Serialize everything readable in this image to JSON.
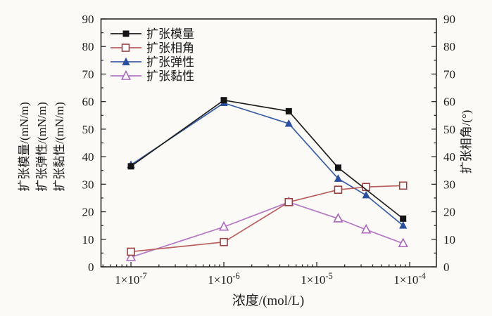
{
  "figure": {
    "background": "#fbfaf7",
    "frame_color": "#2a2a2a",
    "text_color": "#1b1b1b"
  },
  "axes": {
    "x": {
      "title": "浓度/(mol/L)",
      "scale": "log"
    },
    "y_left": {
      "titles": [
        "扩张模量/(mN/m)",
        "扩张弹性/(mN/m)",
        "扩张黏性/(mN/m)"
      ],
      "min": 0,
      "max": 90,
      "major_step": 10,
      "minor_step": 5
    },
    "y_right": {
      "title": "扩张相角/(°)",
      "min": 0,
      "max": 90,
      "major_step": 10,
      "minor_step": 5
    }
  },
  "chart_data": {
    "type": "line",
    "xlabel": "浓度/(mol/L)",
    "ylabel_left": "扩张模量/(mN/m)  扩张弹性/(mN/m)  扩张黏性/(mN/m)",
    "ylabel_right": "扩张相角/(°)",
    "x_scale": "log",
    "xlim": [
      4.76e-08,
      0.000194
    ],
    "ylim": [
      0,
      90
    ],
    "y_major_step": 10,
    "y_minor_step": 5,
    "legend_position": "upper-left-inside",
    "grid": false,
    "x_ticks": [
      {
        "value": 1e-07,
        "base": "1×10",
        "exp": "-7"
      },
      {
        "value": 1e-06,
        "base": "1×10",
        "exp": "-6"
      },
      {
        "value": 1e-05,
        "base": "1×10",
        "exp": "-5"
      },
      {
        "value": 0.0001,
        "base": "1×10",
        "exp": "-4"
      }
    ],
    "series": [
      {
        "key": "modulus",
        "name": "扩张模量",
        "marker": "square-filled",
        "color": "#1f1f1f",
        "marker_color": "#141414",
        "x": [
          1e-07,
          1e-06,
          5e-06,
          1.7e-05,
          8.5e-05
        ],
        "y": [
          36.5,
          60.5,
          56.5,
          36,
          17.5
        ]
      },
      {
        "key": "phase-angle",
        "name": "扩张相角",
        "marker": "square-open",
        "color": "#b85f5f",
        "marker_color": "#9a4040",
        "x": [
          1e-07,
          1e-06,
          5e-06,
          1.7e-05,
          3.4e-05,
          8.5e-05
        ],
        "y": [
          5.5,
          9,
          23.5,
          28,
          29,
          29.5
        ]
      },
      {
        "key": "elasticity",
        "name": "扩张弹性",
        "marker": "triangle-filled",
        "color": "#3a5fa5",
        "marker_color": "#2a4f9e",
        "x": [
          1e-07,
          1e-06,
          5e-06,
          1.7e-05,
          3.4e-05,
          8.5e-05
        ],
        "y": [
          37,
          59.5,
          52,
          32,
          26,
          15
        ]
      },
      {
        "key": "viscosity",
        "name": "扩张黏性",
        "marker": "triangle-open",
        "color": "#b477c4",
        "marker_color": "#aa66ba",
        "x": [
          1e-07,
          1e-06,
          5e-06,
          1.7e-05,
          3.4e-05,
          8.5e-05
        ],
        "y": [
          3.5,
          14.5,
          23.5,
          17.5,
          13.5,
          8.5
        ]
      }
    ],
    "draw_order": [
      3,
      2,
      1,
      0
    ]
  }
}
